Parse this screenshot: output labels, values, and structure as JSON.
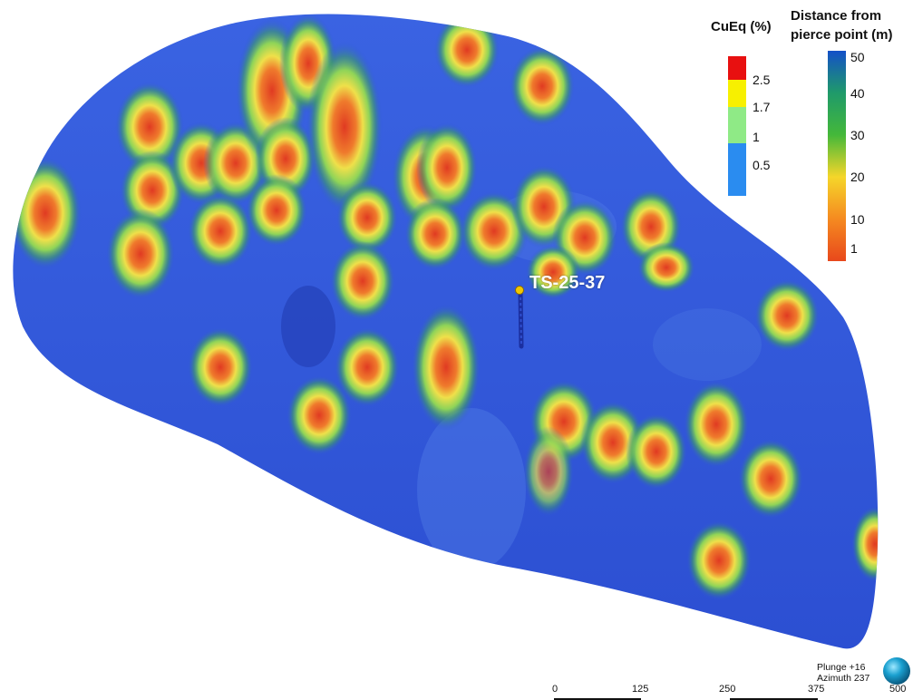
{
  "legend_cueq": {
    "title": "CuEq (%)",
    "ticks": [
      "2.5",
      "1.7",
      "1",
      "0.5"
    ],
    "colors": [
      "#e81010",
      "#f7f000",
      "#8fea86",
      "#2a8cf0"
    ]
  },
  "legend_distance": {
    "title_line1": "Distance from",
    "title_line2": "pierce point (m)",
    "ticks": [
      "50",
      "40",
      "30",
      "20",
      "10",
      "1"
    ],
    "colors": [
      "#1450c8",
      "#1f9a6a",
      "#44b83a",
      "#f5d62a",
      "#f58a20",
      "#e8481c"
    ]
  },
  "drillhole": {
    "label": "TS-25-37"
  },
  "orientation": {
    "line1": "Plunge +16",
    "line2": "Azimuth 237"
  },
  "scale_bar": {
    "labels": [
      "0",
      "125",
      "250",
      "375",
      "500"
    ]
  },
  "colors": {
    "surface": "#2f55d8",
    "halo_green": "#7fd050",
    "halo_yellow": "#e8e040",
    "core_red": "#e0402a"
  }
}
